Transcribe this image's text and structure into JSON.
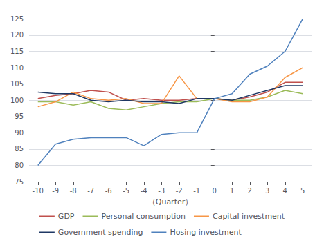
{
  "chart_data": {
    "type": "line",
    "x_label": "（Quarter）",
    "x": [
      -10,
      -9,
      -8,
      -7,
      -6,
      -5,
      -4,
      -3,
      -2,
      -1,
      0,
      1,
      2,
      3,
      4,
      5
    ],
    "series": [
      {
        "name": "GDP",
        "color": "#c0504d",
        "values": [
          100.5,
          101.5,
          102.0,
          103.0,
          102.5,
          100.0,
          100.5,
          100.0,
          100.0,
          100.5,
          100.5,
          100.0,
          101.0,
          102.5,
          105.5,
          105.5
        ]
      },
      {
        "name": "Personal consumption",
        "color": "#9bbb59",
        "values": [
          99.5,
          99.5,
          98.5,
          99.5,
          97.5,
          97.0,
          98.0,
          99.0,
          99.5,
          99.5,
          100.5,
          100.0,
          100.0,
          101.0,
          103.0,
          102.0
        ]
      },
      {
        "name": "Capital investment",
        "color": "#f79646",
        "values": [
          98.0,
          99.5,
          102.5,
          100.5,
          100.0,
          100.5,
          99.0,
          99.0,
          107.5,
          100.5,
          100.5,
          99.5,
          99.5,
          101.0,
          107.0,
          110.0
        ]
      },
      {
        "name": "Government spending",
        "color": "#1f3864",
        "values": [
          102.5,
          102.0,
          102.0,
          100.0,
          99.5,
          100.0,
          99.5,
          99.5,
          99.0,
          100.5,
          100.5,
          100.0,
          101.5,
          103.0,
          104.5,
          104.5
        ]
      },
      {
        "name": "Hosing investment",
        "color": "#4f81bd",
        "values": [
          80.0,
          86.5,
          88.0,
          88.5,
          88.5,
          88.5,
          86.0,
          89.5,
          90.0,
          90.0,
          100.5,
          102.0,
          108.0,
          110.5,
          115.0,
          125.0
        ]
      }
    ],
    "xlim": [
      -10.5,
      5.5
    ],
    "xticks": [
      -10,
      -9,
      -8,
      -7,
      -6,
      -5,
      -4,
      -3,
      -2,
      -1,
      0,
      1,
      2,
      3,
      4,
      5
    ],
    "ylim": [
      75,
      127
    ],
    "yticks": [
      75,
      80,
      85,
      90,
      95,
      100,
      105,
      110,
      115,
      120,
      125
    ],
    "grid": true,
    "legend": "bottom"
  }
}
